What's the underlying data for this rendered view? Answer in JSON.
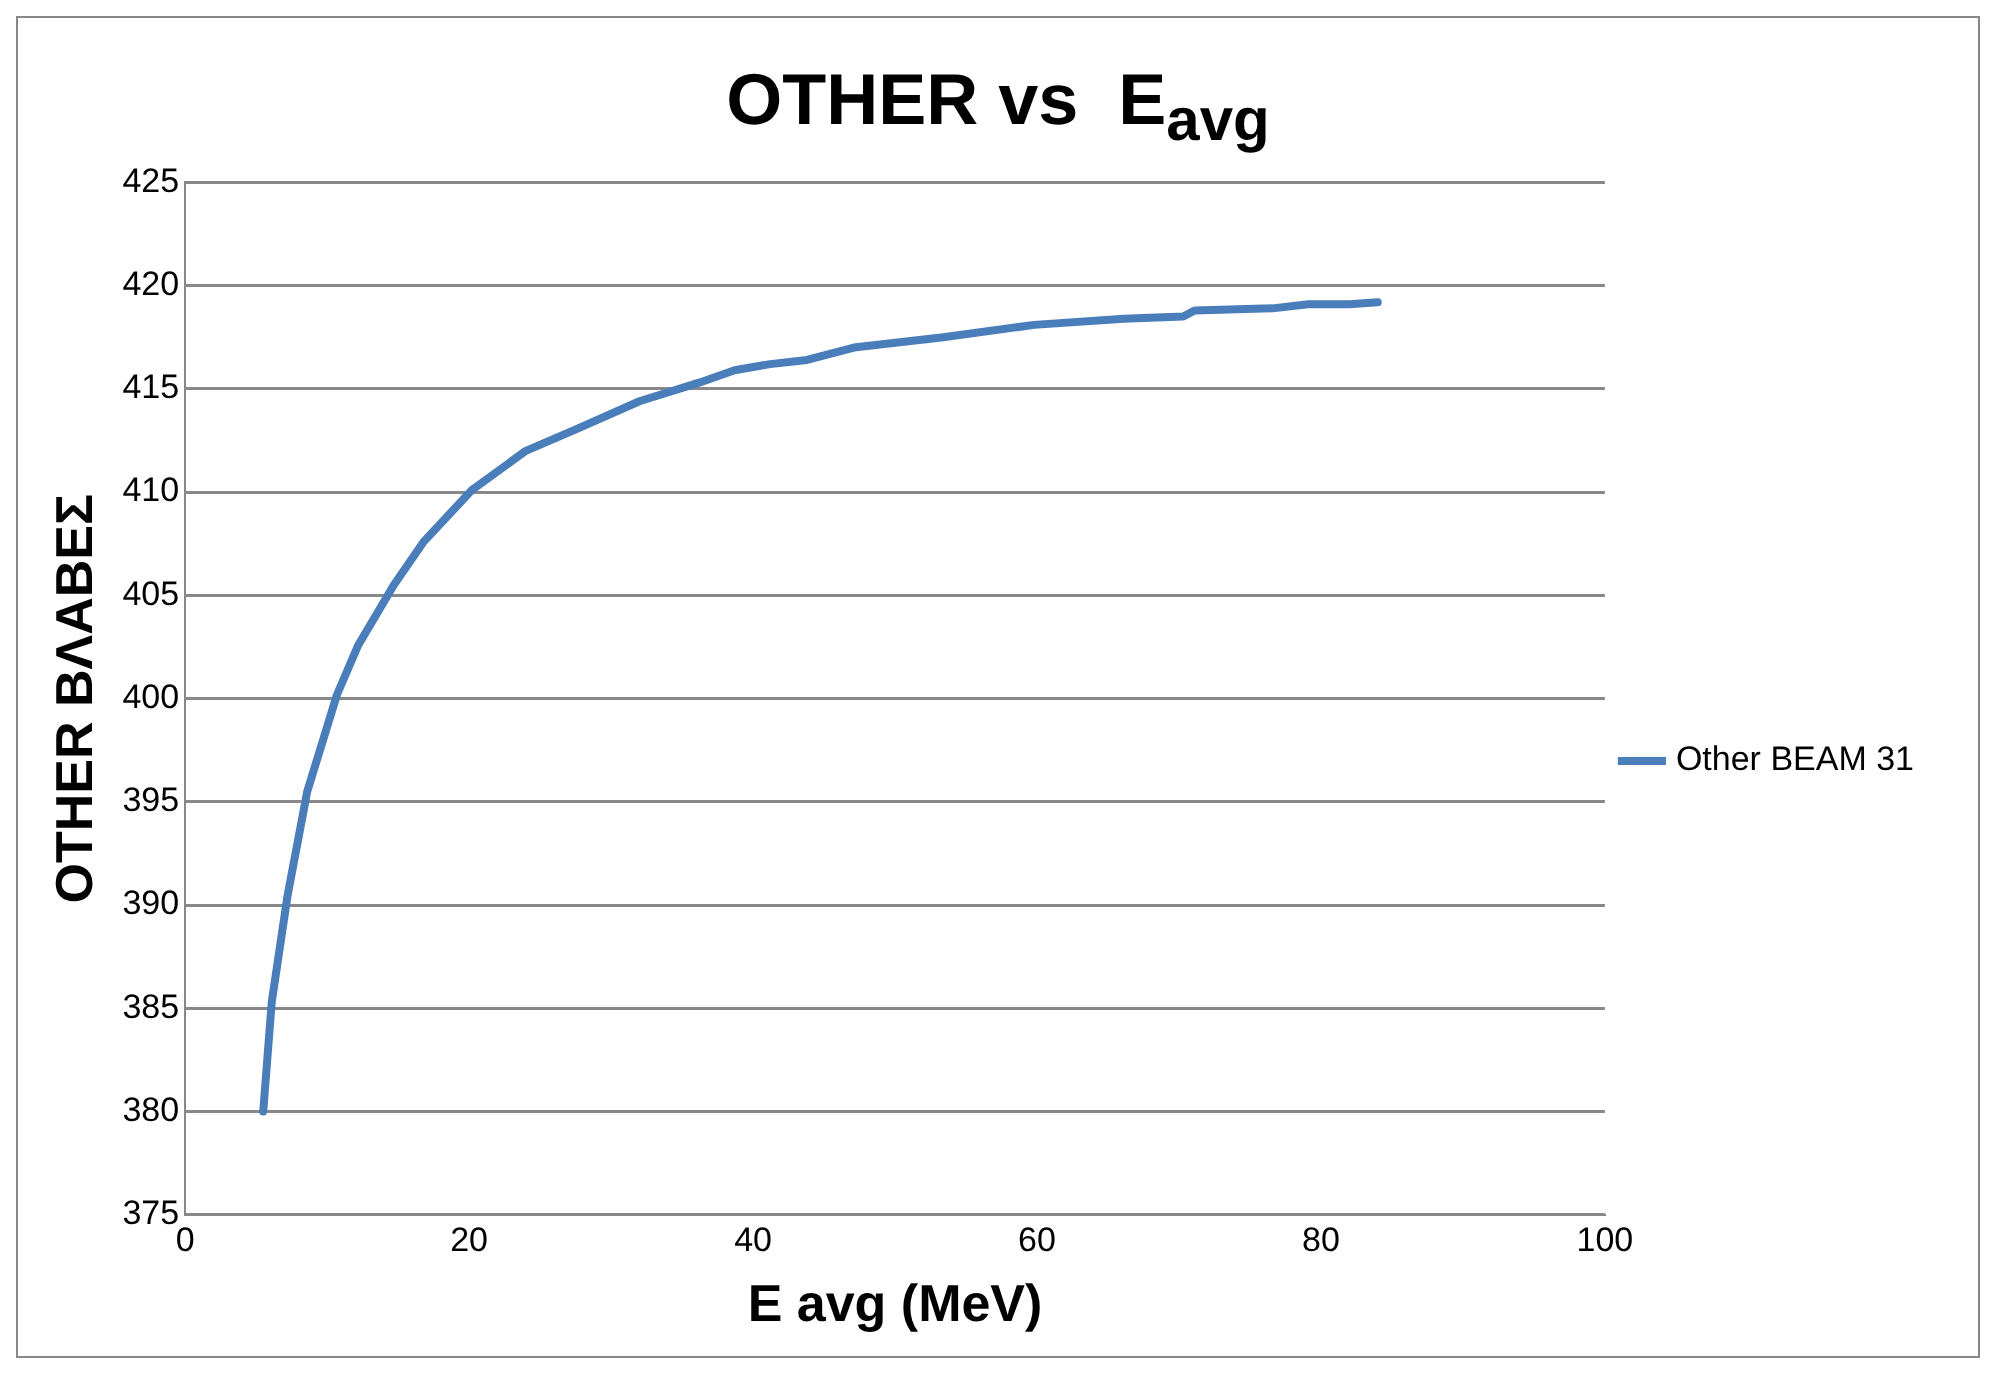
{
  "chart_data": {
    "type": "line",
    "title": "OTHER vs  E$_{avg}$",
    "xlabel": "E avg (MeV)",
    "ylabel": "OTHER ΒΛΑΒΕΣ",
    "x": [
      5.5,
      6.1,
      7.2,
      8.6,
      10.7,
      12.2,
      14.7,
      16.8,
      20.2,
      24.0,
      27.4,
      32.0,
      36.2,
      38.7,
      41.2,
      43.8,
      47.1,
      53.4,
      59.8,
      66.1,
      70.3,
      71.1,
      76.6,
      79.1,
      82.0,
      84.0
    ],
    "series": [
      {
        "name": "Other BEAM 31",
        "color": "#4a7ebb",
        "values": [
          380.0,
          385.3,
          390.4,
          395.5,
          400.2,
          402.6,
          405.5,
          407.6,
          410.1,
          412.0,
          413.0,
          414.4,
          415.3,
          415.9,
          416.2,
          416.4,
          417.0,
          417.5,
          418.1,
          418.4,
          418.5,
          418.8,
          418.9,
          419.1,
          419.1,
          419.2
        ]
      }
    ],
    "xlim": [
      0,
      100
    ],
    "xticks": [
      0,
      20,
      40,
      60,
      80,
      100
    ],
    "ylim": [
      375,
      425
    ],
    "yticks": [
      375,
      380,
      385,
      390,
      395,
      400,
      405,
      410,
      415,
      420,
      425
    ],
    "grid": "y",
    "legend": "right",
    "marker": "none",
    "line_style": "solid"
  }
}
